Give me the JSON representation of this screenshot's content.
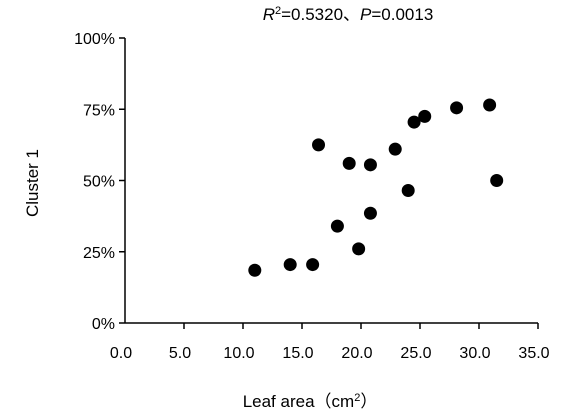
{
  "chart_data": {
    "type": "scatter",
    "title": "",
    "annotation": {
      "r_symbol": "R",
      "r_exponent": "2",
      "r_value": "=0.5320、",
      "p_symbol": "P",
      "p_value": "=0.0013"
    },
    "xlabel": {
      "main": "Leaf area（cm",
      "sup": "2",
      "end": "）"
    },
    "ylabel": "Cluster 1",
    "xlim": [
      0,
      35
    ],
    "ylim": [
      0,
      100
    ],
    "x_ticks": [
      0,
      5,
      10,
      15,
      20,
      25,
      30,
      35
    ],
    "x_tick_labels": [
      "0.0",
      "5.0",
      "10.0",
      "15.0",
      "20.0",
      "25.0",
      "30.0",
      "35.0"
    ],
    "y_ticks": [
      0,
      25,
      50,
      75,
      100
    ],
    "y_tick_labels": [
      "0%",
      "25%",
      "50%",
      "75%",
      "100%"
    ],
    "grid": false,
    "legend": "none",
    "marker_color": "#000000",
    "points": [
      {
        "x": 11.0,
        "y": 18.5
      },
      {
        "x": 14.0,
        "y": 20.5
      },
      {
        "x": 15.9,
        "y": 20.5
      },
      {
        "x": 16.4,
        "y": 62.5
      },
      {
        "x": 18.0,
        "y": 34.0
      },
      {
        "x": 19.0,
        "y": 56.0
      },
      {
        "x": 19.8,
        "y": 26.0
      },
      {
        "x": 20.8,
        "y": 38.5
      },
      {
        "x": 20.8,
        "y": 55.5
      },
      {
        "x": 22.9,
        "y": 61.0
      },
      {
        "x": 24.0,
        "y": 46.5
      },
      {
        "x": 24.5,
        "y": 70.5
      },
      {
        "x": 25.4,
        "y": 72.5
      },
      {
        "x": 28.1,
        "y": 75.5
      },
      {
        "x": 30.9,
        "y": 76.5
      },
      {
        "x": 31.5,
        "y": 50.0
      }
    ]
  }
}
